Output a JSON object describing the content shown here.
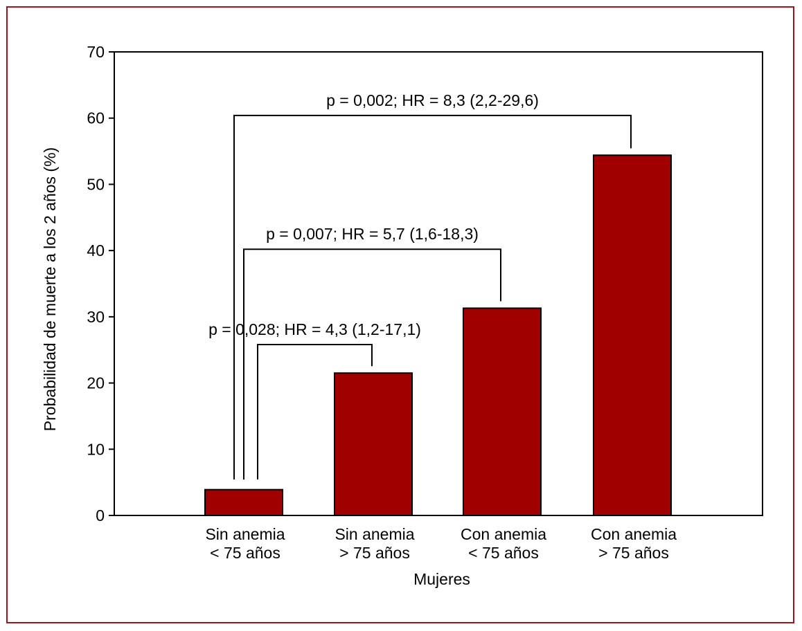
{
  "chart_data": {
    "type": "bar",
    "categories": [
      [
        "Sin anemia",
        "< 75 años"
      ],
      [
        "Sin anemia",
        "> 75 años"
      ],
      [
        "Con anemia",
        "< 75 años"
      ],
      [
        "Con anemia",
        "> 75 años"
      ]
    ],
    "values": [
      3.9,
      21.5,
      31.3,
      54.4
    ],
    "xlabel": "Mujeres",
    "ylabel": "Probabilidad de muerte a los 2 años (%)",
    "ylim": [
      0,
      70
    ],
    "yticks": [
      0,
      10,
      20,
      30,
      40,
      50,
      60,
      70
    ],
    "bar_color": "#a00000",
    "frame_color": "#a6121c",
    "grid": false,
    "comparisons": [
      {
        "from": 0,
        "to": 1,
        "label": "p = 0,028; HR = 4,3 (1,2-17,1)"
      },
      {
        "from": 0,
        "to": 2,
        "label": "p = 0,007; HR = 5,7 (1,6-18,3)"
      },
      {
        "from": 0,
        "to": 3,
        "label": "p = 0,002; HR = 8,3 (2,2-29,6)"
      }
    ]
  }
}
